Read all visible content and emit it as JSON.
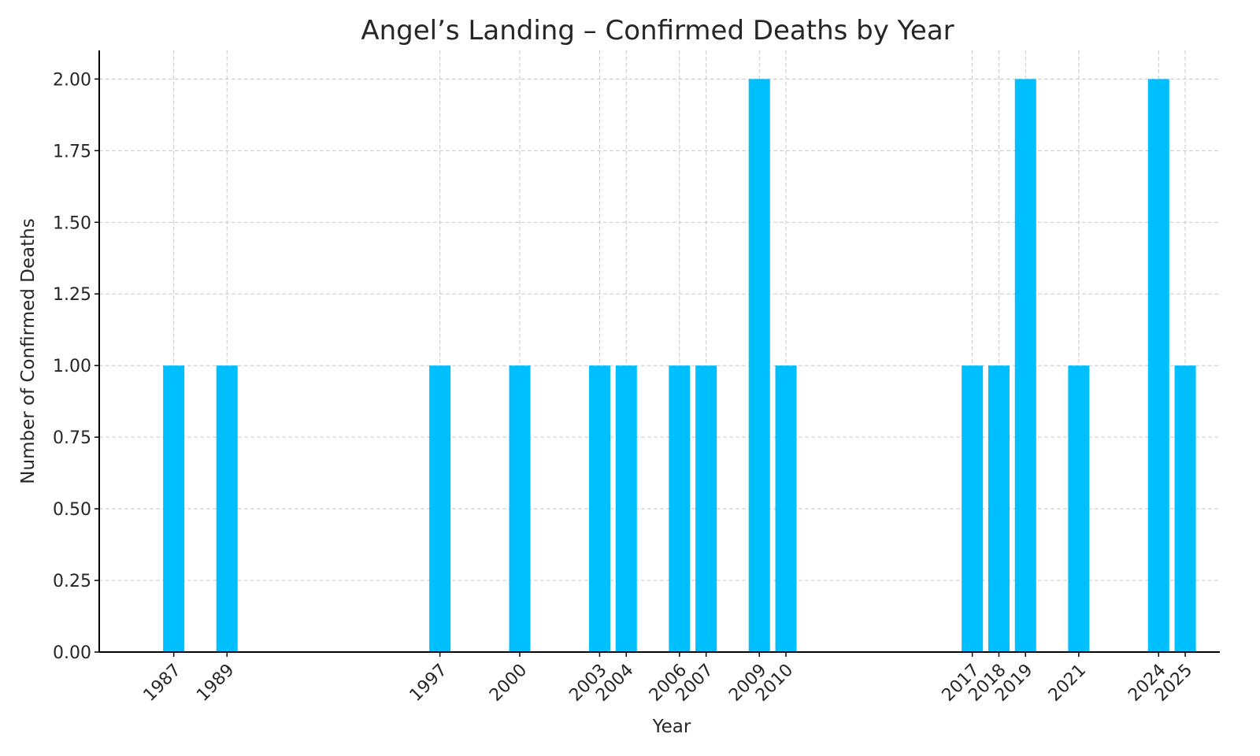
{
  "chart_data": {
    "type": "bar",
    "title": "Angel’s Landing – Confirmed Deaths by Year",
    "xlabel": "Year",
    "ylabel": "Number of Confirmed Deaths",
    "x": [
      1987,
      1989,
      1997,
      2000,
      2003,
      2004,
      2006,
      2007,
      2009,
      2010,
      2017,
      2018,
      2019,
      2021,
      2024,
      2025
    ],
    "x_tick_labels": [
      "1987",
      "1989",
      "1997",
      "2000",
      "2003",
      "2004",
      "2006",
      "2007",
      "2009",
      "2010",
      "2017",
      "2018",
      "2019",
      "2021",
      "2024",
      "2025"
    ],
    "values": [
      1,
      1,
      1,
      1,
      1,
      1,
      1,
      1,
      2,
      1,
      1,
      1,
      2,
      1,
      2,
      1
    ],
    "xlim": [
      1984.2,
      2026.3
    ],
    "ylim": [
      0,
      2.1
    ],
    "y_ticks": [
      0,
      0.25,
      0.5,
      0.75,
      1.0,
      1.25,
      1.5,
      1.75,
      2.0
    ],
    "y_tick_labels": [
      "0.00",
      "0.25",
      "0.50",
      "0.75",
      "1.00",
      "1.25",
      "1.50",
      "1.75",
      "2.00"
    ],
    "grid": true,
    "bar_color": "#00bfff"
  }
}
